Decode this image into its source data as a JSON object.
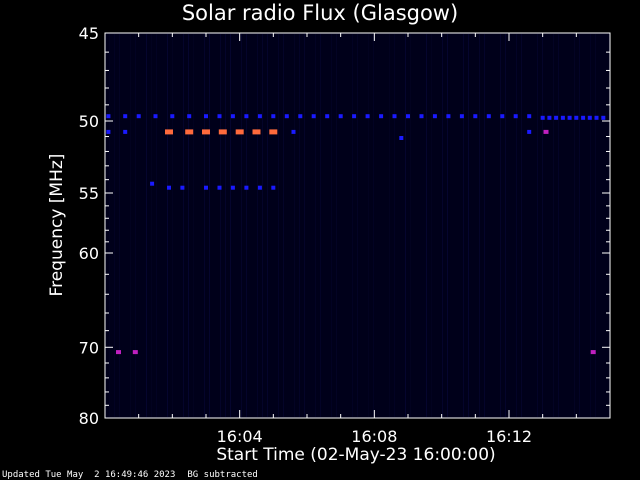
{
  "chart_data": {
    "type": "heatmap",
    "title": "Solar radio Flux (Glasgow)",
    "xlabel": "Start Time (02-May-23 16:00:00)",
    "ylabel": "Frequency [MHz]",
    "x_unit": "minutes after 16:00:00",
    "xlim": [
      0,
      15
    ],
    "ylim": [
      80,
      45
    ],
    "y_scale": "inverse",
    "xticks": [
      {
        "value": 4,
        "label": "16:04"
      },
      {
        "value": 8,
        "label": "16:08"
      },
      {
        "value": 12,
        "label": "16:12"
      }
    ],
    "yticks": [
      {
        "value": 45,
        "label": "45"
      },
      {
        "value": 50,
        "label": "50"
      },
      {
        "value": 55,
        "label": "55"
      },
      {
        "value": 60,
        "label": "60"
      },
      {
        "value": 70,
        "label": "70"
      },
      {
        "value": 80,
        "label": "80"
      }
    ],
    "grid": false,
    "colors": {
      "background": "#000000",
      "plot_background": "#00001a",
      "axes": "#ffffff",
      "low": "#1a1aff",
      "mid": "#c020c0",
      "high": "#ff6a3c"
    },
    "bands": [
      {
        "freq": 49.7,
        "intensity": "low",
        "x": [
          0.1,
          0.6,
          1.0,
          1.5,
          2.0,
          2.5,
          3.0,
          3.4,
          3.8,
          4.2,
          4.6,
          5.0,
          5.4,
          5.8,
          6.2,
          6.6,
          7.0,
          7.4,
          7.8,
          8.2,
          8.6,
          9.0,
          9.4,
          9.8,
          10.2,
          10.6,
          11.0,
          11.4,
          11.8,
          12.2,
          12.6
        ]
      },
      {
        "freq": 49.8,
        "intensity": "low",
        "x": [
          13.0,
          13.2,
          13.4,
          13.6,
          13.8,
          14.0,
          14.2,
          14.4,
          14.6,
          14.8
        ]
      },
      {
        "freq": 50.7,
        "intensity": "low",
        "x": [
          0.1,
          0.6,
          5.6,
          12.6
        ]
      },
      {
        "freq": 51.1,
        "intensity": "low",
        "x": [
          8.8
        ]
      },
      {
        "freq": 50.7,
        "intensity": "high",
        "x": [
          1.9,
          2.5,
          3.0,
          3.5,
          4.0,
          4.5,
          5.0
        ]
      },
      {
        "freq": 50.7,
        "intensity": "mid",
        "x": [
          13.1
        ]
      },
      {
        "freq": 54.3,
        "intensity": "low",
        "x": [
          1.4
        ]
      },
      {
        "freq": 54.6,
        "intensity": "low",
        "x": [
          1.9,
          2.3,
          3.0,
          3.4,
          3.8,
          4.2,
          4.6,
          5.0
        ]
      },
      {
        "freq": 70.6,
        "intensity": "mid",
        "x": [
          0.4,
          0.9,
          14.5
        ]
      }
    ]
  }
}
